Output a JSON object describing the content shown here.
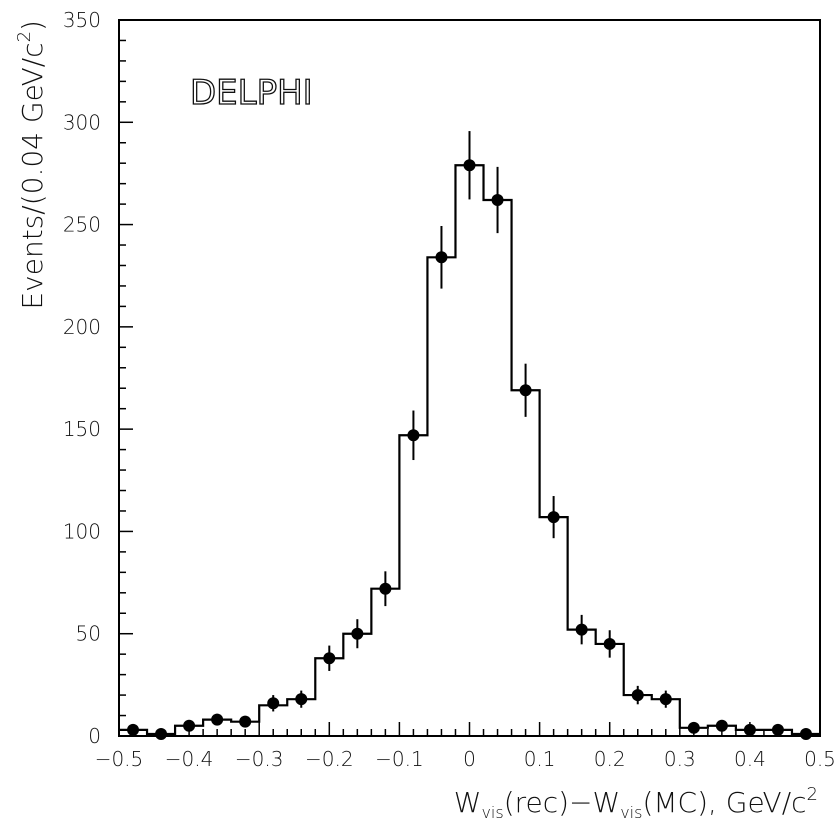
{
  "chart_data": {
    "type": "scatter",
    "annotation": "DELPHI",
    "xlabel_parts": {
      "w1": "W",
      "sub1": "vis",
      "mid": "(rec)−W",
      "sub2": "vis",
      "end": "(MC), GeV/c",
      "sup": "2"
    },
    "ylabel_parts": {
      "main": "Events/(0.04 GeV/c",
      "sup": "2",
      "close": ")"
    },
    "xlim": [
      -0.5,
      0.5
    ],
    "ylim": [
      0,
      350
    ],
    "x_ticks": [
      -0.5,
      -0.4,
      -0.3,
      -0.2,
      -0.1,
      0,
      0.1,
      0.2,
      0.3,
      0.4,
      0.5
    ],
    "x_tick_labels": [
      "−0.5",
      "−0.4",
      "−0.3",
      "−0.2",
      "−0.1",
      "0",
      "0.1",
      "0.2",
      "0.3",
      "0.4",
      "0.5"
    ],
    "y_ticks": [
      0,
      50,
      100,
      150,
      200,
      250,
      300,
      350
    ],
    "y_tick_labels": [
      "0",
      "50",
      "100",
      "150",
      "200",
      "250",
      "300",
      "350"
    ],
    "grid": false,
    "legend": "none",
    "histogram": {
      "bin_edges": [
        -0.5,
        -0.46,
        -0.42,
        -0.38,
        -0.34,
        -0.3,
        -0.26,
        -0.22,
        -0.18,
        -0.14,
        -0.1,
        -0.06,
        -0.02,
        0.02,
        0.06,
        0.1,
        0.14,
        0.18,
        0.22,
        0.26,
        0.3,
        0.34,
        0.38,
        0.42,
        0.46,
        0.5
      ],
      "counts": [
        3,
        1,
        5,
        8,
        7,
        15,
        18,
        38,
        50,
        72,
        147,
        234,
        279,
        262,
        169,
        107,
        52,
        45,
        20,
        18,
        4,
        5,
        3,
        3,
        1
      ]
    },
    "points": {
      "x": [
        -0.48,
        -0.44,
        -0.4,
        -0.36,
        -0.32,
        -0.28,
        -0.24,
        -0.2,
        -0.16,
        -0.12,
        -0.08,
        -0.04,
        0.0,
        0.04,
        0.08,
        0.12,
        0.16,
        0.2,
        0.24,
        0.28,
        0.32,
        0.36,
        0.4,
        0.44,
        0.48
      ],
      "y": [
        3,
        1,
        5,
        8,
        7,
        16,
        18,
        38,
        50,
        72,
        147,
        234,
        279,
        262,
        169,
        107,
        52,
        45,
        20,
        18,
        4,
        5,
        3,
        3,
        1
      ],
      "err": [
        1.7,
        1,
        2.2,
        2.8,
        2.6,
        4,
        4.2,
        6.2,
        7.1,
        8.5,
        12.1,
        15.3,
        16.7,
        16.2,
        13,
        10.3,
        7.2,
        6.7,
        4.5,
        4.2,
        2,
        2.2,
        1.7,
        1.7,
        1
      ]
    }
  }
}
